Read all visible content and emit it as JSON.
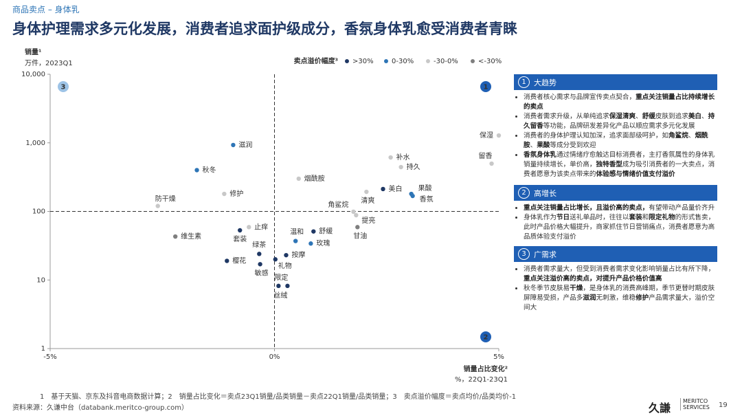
{
  "header": {
    "section": "商品卖点 – 身体乳",
    "title": "身体护理需求多元化发展，消费者追求面护级成分，香氛身体乳愈受消费者青睐"
  },
  "chart_data": {
    "type": "scatter",
    "y_label": "销量¹",
    "y_unit": "万件，2023Q1",
    "x_label": "销量占比变化²",
    "x_unit": "%，22Q1-23Q1",
    "legend_title": "卖点溢价幅度³",
    "xlim": [
      -5,
      5
    ],
    "xticks": [
      {
        "value": -5,
        "label": "-5%"
      },
      {
        "value": 0,
        "label": "0%"
      },
      {
        "value": 5,
        "label": "5%"
      }
    ],
    "ylim": [
      1,
      10000
    ],
    "log_y": true,
    "yticks": [
      1,
      10,
      100,
      {
        "value": 1000,
        "label": "1,000"
      },
      {
        "value": 10000,
        "label": "10,000"
      }
    ],
    "crosshair": {
      "x": 0,
      "y": 100
    },
    "quadrant_labels": [
      "1",
      "2",
      "3"
    ],
    "series": [
      {
        "name": ">30%",
        "color": "#1f3864",
        "labels": [
          "套装",
          "绿茶",
          "樱花",
          "敏感",
          "礼物",
          "按摩",
          "限定",
          "丝绒",
          "舒缓",
          "美白"
        ],
        "x": [
          -0.77,
          -0.34,
          -1.06,
          -0.32,
          0.02,
          0.26,
          0.09,
          0.29,
          0.87,
          2.42
        ],
        "values": [
          53,
          24,
          19,
          17,
          20,
          23,
          8.2,
          8.2,
          51,
          212
        ]
      },
      {
        "name": "0-30%",
        "color": "#2e75b6",
        "labels": [
          "滋润",
          "秋冬",
          "温和",
          "玫瑰",
          "果酸",
          "香氛"
        ],
        "x": [
          -0.92,
          -1.73,
          0.47,
          0.81,
          3.05,
          3.08
        ],
        "values": [
          930,
          400,
          37,
          34,
          180,
          168
        ]
      },
      {
        "name": "-30-0%",
        "color": "#c8c8c8",
        "labels": [
          "修护",
          "防干燥",
          "烟酰胺",
          "止痒",
          "角鲨烷",
          "清爽",
          "提亮",
          "补水",
          "持久",
          "保湿",
          "留香"
        ],
        "x": [
          -1.12,
          -2.6,
          0.54,
          -0.57,
          1.76,
          2.05,
          1.82,
          2.59,
          2.82,
          5.0,
          4.84
        ],
        "values": [
          180,
          120,
          300,
          59,
          99,
          193,
          88,
          612,
          443,
          1280,
          497
        ]
      },
      {
        "name": "<-30%",
        "color": "#7f7f7f",
        "labels": [
          "维生素",
          "甘油"
        ],
        "x": [
          -2.21,
          1.85
        ],
        "values": [
          43,
          59
        ]
      }
    ]
  },
  "panel": {
    "sections": [
      {
        "number": "1",
        "heading": "大趋势",
        "bullets": [
          [
            {
              "t": "消费者核心需求与品牌宣传卖点契合，"
            },
            {
              "t": "重点关注销量占比持续增长的卖点",
              "b": true
            }
          ],
          [
            {
              "t": "消费者需求升级，从单纯追求"
            },
            {
              "t": "保湿清爽",
              "b": true
            },
            {
              "t": "、"
            },
            {
              "t": "舒缓",
              "b": true
            },
            {
              "t": "皮肤到追求"
            },
            {
              "t": "美白",
              "b": true
            },
            {
              "t": "、"
            },
            {
              "t": "持久留香",
              "b": true
            },
            {
              "t": "等功能，品牌研发差异化产品以顺应需求多元化发展"
            }
          ],
          [
            {
              "t": "消费者的身体护理认知加深，追求面部级呵护，如"
            },
            {
              "t": "角鲨烷",
              "b": true
            },
            {
              "t": "、"
            },
            {
              "t": "烟酰胺",
              "b": true
            },
            {
              "t": "、"
            },
            {
              "t": "果酸",
              "b": true
            },
            {
              "t": "等成分受到欢迎"
            }
          ],
          [
            {
              "t": "香氛身体乳",
              "b": true
            },
            {
              "t": "通过情绪疗愈触达目标消费者，主打香氛属性的身体乳销量持续增长，单价高，"
            },
            {
              "t": "独特香型",
              "b": true
            },
            {
              "t": "成为吸引消费者的一大卖点，消费者愿意为该卖点带来的"
            },
            {
              "t": "体验感与情绪价值支付溢价",
              "b": true
            }
          ]
        ]
      },
      {
        "number": "2",
        "heading": "高增长",
        "bullets": [
          [
            {
              "t": "重点关注销量占比增长，且溢价高的卖点，",
              "b": true
            },
            {
              "t": "有望带动产品量价齐升"
            }
          ],
          [
            {
              "t": "身体乳作为"
            },
            {
              "t": "节日",
              "b": true
            },
            {
              "t": "送礼单品时，往往以"
            },
            {
              "t": "套装",
              "b": true
            },
            {
              "t": "和"
            },
            {
              "t": "限定礼物",
              "b": true
            },
            {
              "t": "的形式售卖，此时产品价格大幅提升，商家抓住节日营销痛点，消费者愿意为高品质体验支付溢价"
            }
          ]
        ]
      },
      {
        "number": "3",
        "heading": "广需求",
        "bullets": [
          [
            {
              "t": "消费者需求量大，但受到消费者需求变化影响销量占比有所下降，"
            },
            {
              "t": "重点关注溢价高的卖点，对提升产品价格价值高",
              "b": true
            }
          ],
          [
            {
              "t": "秋冬季节皮肤易"
            },
            {
              "t": "干燥",
              "b": true
            },
            {
              "t": "，是身体乳的消费高峰期，季节更替时期皮肤屏障易受损，产品多"
            },
            {
              "t": "滋润",
              "b": true
            },
            {
              "t": "无刺激，维稳"
            },
            {
              "t": "修护",
              "b": true
            },
            {
              "t": "产品需求量大，溢价空间大"
            }
          ]
        ]
      }
    ]
  },
  "footer": {
    "notes": "1　基于天猫、京东及抖音电商数据计算；2　销量占比变化＝卖点23Q1销量/品类销量－卖点22Q1销量/品类销量；3　卖点溢价幅度＝卖点均价/品类均价-1",
    "source": "资料来源：久谦中台（databank.meritco-group.com）",
    "logo": "久謙",
    "logo_en": "MERITCO SERVICES",
    "page": "19"
  }
}
